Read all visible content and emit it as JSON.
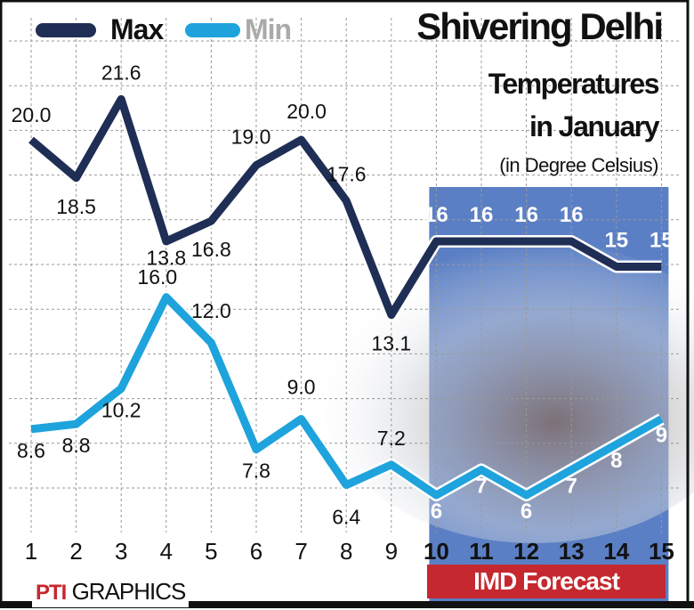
{
  "chart_data": {
    "type": "line",
    "title": "Shivering Delhi",
    "subtitle": [
      "Temperatures",
      "in January",
      "(in Degree Celsius)"
    ],
    "categories": [
      "1",
      "2",
      "3",
      "4",
      "5",
      "6",
      "7",
      "8",
      "9",
      "10",
      "11",
      "12",
      "13",
      "14",
      "15"
    ],
    "series": [
      {
        "name": "Max",
        "color": "#1f2e55",
        "values": [
          20.0,
          18.5,
          21.6,
          16.0,
          16.8,
          19.0,
          20.0,
          17.6,
          13.1,
          16,
          16,
          16,
          16,
          15,
          15
        ],
        "labels": [
          "20.0",
          "18.5",
          "21.6",
          "16.0",
          "16.8",
          "19.0",
          "20.0",
          "17.6",
          "13.1",
          "16",
          "16",
          "16",
          "16",
          "15",
          "15"
        ]
      },
      {
        "name": "Min",
        "color": "#1ea3dc",
        "values": [
          8.6,
          8.8,
          10.2,
          13.8,
          12.0,
          7.8,
          9.0,
          6.4,
          7.2,
          6,
          7,
          6,
          7,
          8,
          9
        ],
        "labels": [
          "8.6",
          "8.8",
          "10.2",
          "13.8",
          "12.0",
          "7.8",
          "9.0",
          "6.4",
          "7.2",
          "6",
          "7",
          "6",
          "7",
          "8",
          "9"
        ]
      }
    ],
    "forecast_range": [
      "10",
      "15"
    ],
    "forecast_label": "IMD Forecast",
    "forecast_color": "#5b7fc4",
    "grid": true,
    "legend": "top-left"
  },
  "credit": {
    "logo": "PTI",
    "text": "GRAPHICS"
  }
}
